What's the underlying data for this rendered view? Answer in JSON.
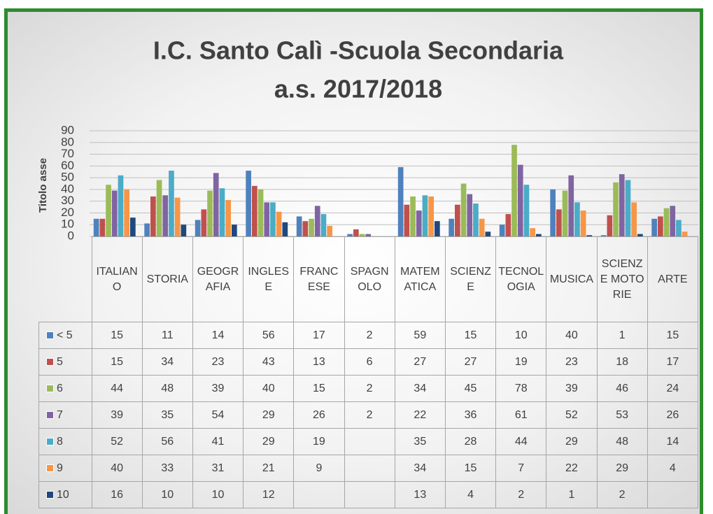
{
  "chart_data": {
    "type": "bar",
    "title": "I.C. Santo Calì -Scuola Secondaria",
    "subtitle": "a.s. 2017/2018",
    "y_label": "Titolo asse",
    "categories": [
      "ITALIANO",
      "STORIA",
      "GEOGRAFIA",
      "INGLESE",
      "FRANCESE",
      "SPAGNOLO",
      "MATEMATICA",
      "SCIENZE",
      "TECNOLOGIA",
      "MUSICA",
      "SCIENZE MOTORIE",
      "ARTE"
    ],
    "series": [
      {
        "name": "< 5",
        "color": "#4f81bd",
        "values": [
          15,
          11,
          14,
          56,
          17,
          2,
          59,
          15,
          10,
          40,
          1,
          15
        ]
      },
      {
        "name": "5",
        "color": "#c0504d",
        "values": [
          15,
          34,
          23,
          43,
          13,
          6,
          27,
          27,
          19,
          23,
          18,
          17
        ]
      },
      {
        "name": "6",
        "color": "#9bbb59",
        "values": [
          44,
          48,
          39,
          40,
          15,
          2,
          34,
          45,
          78,
          39,
          46,
          24
        ]
      },
      {
        "name": "7",
        "color": "#8064a2",
        "values": [
          39,
          35,
          54,
          29,
          26,
          2,
          22,
          36,
          61,
          52,
          53,
          26
        ]
      },
      {
        "name": "8",
        "color": "#4bacc6",
        "values": [
          52,
          56,
          41,
          29,
          19,
          null,
          35,
          28,
          44,
          29,
          48,
          14
        ]
      },
      {
        "name": "9",
        "color": "#f79646",
        "values": [
          40,
          33,
          31,
          21,
          9,
          null,
          34,
          15,
          7,
          22,
          29,
          4
        ]
      },
      {
        "name": "10",
        "color": "#1f497d",
        "values": [
          16,
          10,
          10,
          12,
          null,
          null,
          13,
          4,
          2,
          1,
          2,
          null
        ]
      }
    ],
    "ylim": [
      0,
      90
    ],
    "yticks": [
      0,
      10,
      20,
      30,
      40,
      50,
      60,
      70,
      80,
      90
    ],
    "grid": true
  }
}
